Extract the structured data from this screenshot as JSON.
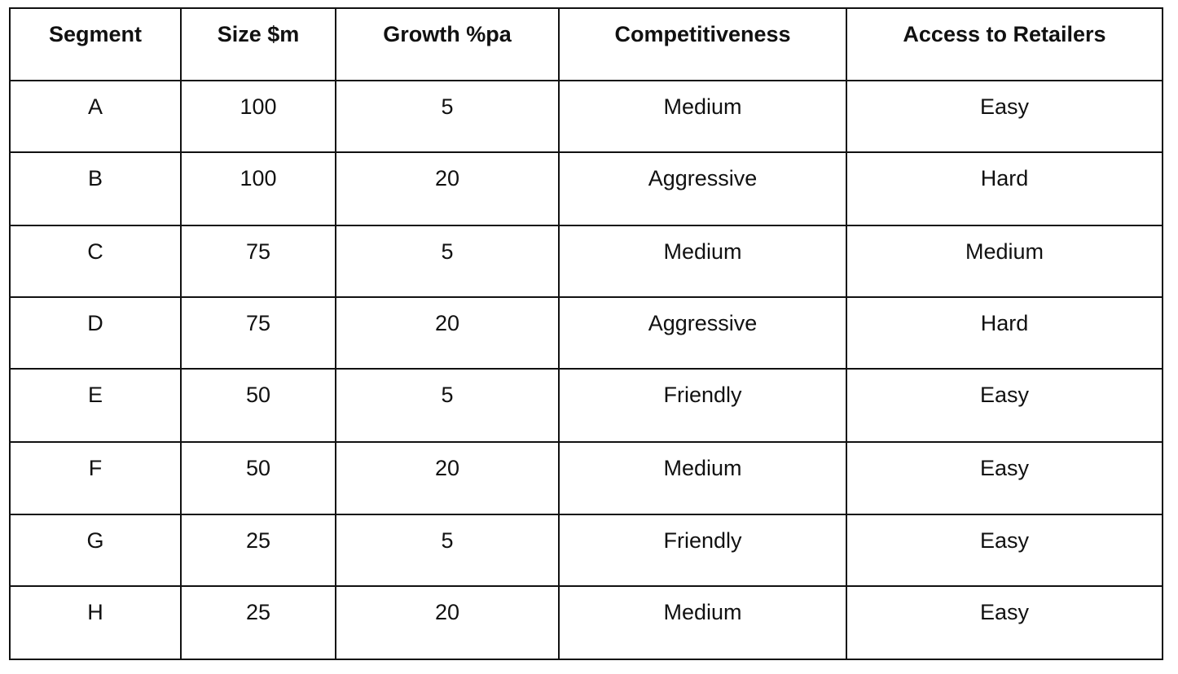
{
  "table": {
    "header": [
      "Segment",
      "Size $m",
      "Growth %pa",
      "Competitiveness",
      "Access to Retailers"
    ],
    "rows": [
      [
        "A",
        100,
        5,
        "Medium",
        "Easy"
      ],
      [
        "B",
        100,
        20,
        "Aggressive",
        "Hard"
      ],
      [
        "C",
        75,
        5,
        "Medium",
        "Medium"
      ],
      [
        "D",
        75,
        20,
        "Aggressive",
        "Hard"
      ],
      [
        "E",
        50,
        5,
        "Friendly",
        "Easy"
      ],
      [
        "F",
        50,
        20,
        "Medium",
        "Easy"
      ],
      [
        "G",
        25,
        5,
        "Friendly",
        "Easy"
      ],
      [
        "H",
        25,
        20,
        "Medium",
        "Easy"
      ]
    ]
  }
}
